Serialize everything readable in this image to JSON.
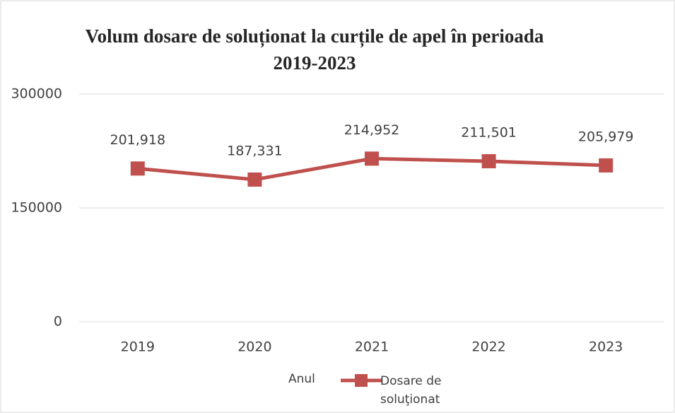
{
  "chart_data": {
    "type": "line",
    "title": "Volum dosare de soluționat la curțile de apel în perioada 2019-2023",
    "x_label": "Anul",
    "categories": [
      "2019",
      "2020",
      "2021",
      "2022",
      "2023"
    ],
    "series": [
      {
        "name": "Dosare de soluţionat",
        "color": "#c0504d",
        "values": [
          201918,
          187331,
          214952,
          211501,
          205979
        ],
        "value_labels": [
          "201,918",
          "187,331",
          "214,952",
          "211,501",
          "205,979"
        ]
      }
    ],
    "ylim": [
      0,
      300000
    ],
    "yticks": [
      0,
      150000,
      300000
    ],
    "grid": true,
    "legend": "bottom"
  }
}
